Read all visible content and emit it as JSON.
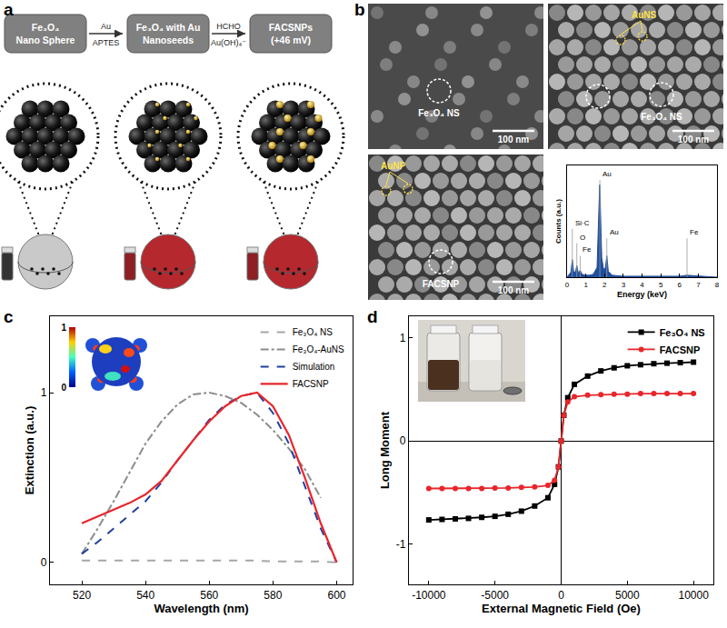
{
  "panel_labels": [
    "a",
    "b",
    "c",
    "d"
  ],
  "schematic": {
    "steps": [
      {
        "lines": [
          "Fe₃O₄",
          "Nano Sphere"
        ]
      },
      {
        "lines": [
          "Fe₃O₄ with Au",
          "Nanoseeds"
        ]
      },
      {
        "lines": [
          "FACSNPs",
          "(+46 mV)"
        ]
      }
    ],
    "arrows": [
      {
        "above": "Au",
        "below": "APTES"
      },
      {
        "above": "HCHO",
        "below": "Au(OH)₄⁻"
      }
    ]
  },
  "sem": {
    "images": [
      {
        "particle_labels": [
          "Fe₃O₄ NS"
        ],
        "gold_labels": [],
        "scale_bar": "100 nm"
      },
      {
        "particle_labels": [
          "Fe₃O₄ NS"
        ],
        "gold_labels": [
          "AuNS"
        ],
        "scale_bar": "100 nm"
      },
      {
        "particle_labels": [
          "FACSNP"
        ],
        "gold_labels": [
          "AuNP"
        ],
        "scale_bar": "100 nm"
      }
    ]
  },
  "chart_data": [
    {
      "type": "area",
      "x_label": "Energy (keV)",
      "y_label": "Counts (a.u.)",
      "x": [
        0,
        0.2,
        0.28,
        0.35,
        0.45,
        0.52,
        0.6,
        0.7,
        0.8,
        1.0,
        1.2,
        1.4,
        1.6,
        1.7,
        1.74,
        1.78,
        1.85,
        1.95,
        2.05,
        2.12,
        2.2,
        2.4,
        3,
        4,
        5,
        6,
        6.4,
        7,
        8
      ],
      "values": [
        0,
        0.05,
        0.18,
        0.06,
        0.05,
        0.12,
        0.04,
        0.07,
        0.03,
        0.02,
        0.02,
        0.03,
        0.1,
        0.6,
        0.95,
        0.7,
        0.2,
        0.08,
        0.1,
        0.22,
        0.06,
        0.02,
        0.01,
        0.01,
        0.01,
        0.01,
        0.02,
        0.01,
        0
      ],
      "color": "#1f4e9c",
      "xlim": [
        0,
        8
      ],
      "xticks": [
        0,
        1,
        2,
        3,
        4,
        5,
        6,
        7,
        8
      ],
      "ylim": [
        0,
        1.15
      ],
      "yticks": [],
      "tick_labels": "x",
      "grid": false,
      "peaks": [
        {
          "label": "Si·C",
          "x": 0.28,
          "y": 0.5
        },
        {
          "label": "O",
          "x": 0.52,
          "y": 0.35
        },
        {
          "label": "Fe",
          "x": 0.7,
          "y": 0.22
        },
        {
          "label": "Au",
          "x": 1.75,
          "y": 1.0
        },
        {
          "label": "Au",
          "x": 2.12,
          "y": 0.4
        },
        {
          "label": "Fe",
          "x": 6.4,
          "y": 0.4
        }
      ]
    },
    {
      "type": "line",
      "x_label": "Wavelength (nm)",
      "y_label": "Extinction (a.u.)",
      "x": [
        520,
        525,
        530,
        535,
        540,
        545,
        550,
        555,
        560,
        565,
        570,
        575,
        580,
        585,
        590,
        595,
        600
      ],
      "series": [
        {
          "name": "Fe₃O₄ NS",
          "color": "#a6a6a6",
          "line_style": "dash",
          "values": [
            0.01,
            0.01,
            0.01,
            0.01,
            0.01,
            0.01,
            0.01,
            0.01,
            0.01,
            0.01,
            0.01,
            0.01,
            0.005,
            0.005,
            0.005,
            0.005,
            0.0
          ]
        },
        {
          "name": "Fe₃O₄-AuNS",
          "color": "#8c8c8c",
          "line_style": "dashdot",
          "values": [
            0.05,
            0.2,
            0.36,
            0.53,
            0.7,
            0.83,
            0.93,
            0.99,
            1.0,
            0.98,
            0.94,
            0.87,
            0.78,
            0.67,
            0.55,
            0.38,
            null
          ]
        },
        {
          "name": "Simulation",
          "color": "#1f3fa0",
          "line_style": "dash",
          "values": [
            0.05,
            0.12,
            0.2,
            0.28,
            0.36,
            0.47,
            0.6,
            0.72,
            0.84,
            0.93,
            0.98,
            1.0,
            0.88,
            0.7,
            0.45,
            0.2,
            0.0
          ]
        },
        {
          "name": "FACSNP",
          "color": "#e8262b",
          "line_style": "solid",
          "values": [
            0.23,
            0.27,
            0.31,
            0.35,
            0.4,
            0.48,
            0.6,
            0.72,
            0.83,
            0.92,
            0.98,
            1.0,
            0.92,
            0.75,
            0.5,
            0.23,
            0.0
          ]
        }
      ],
      "xlim": [
        510,
        605
      ],
      "xticks": [
        520,
        540,
        560,
        580,
        600
      ],
      "ylim": [
        -0.13,
        1.45
      ],
      "yticks": [
        0,
        1
      ],
      "grid": false,
      "legend": "top right",
      "colorbar_range": [
        0,
        1
      ],
      "colorbar_ticks": [
        0,
        1
      ]
    },
    {
      "type": "line",
      "x_label": "External Magnetic Field (Oe)",
      "y_label": "Long Moment",
      "x": [
        -10000,
        -9000,
        -8000,
        -7000,
        -6000,
        -5000,
        -4000,
        -3000,
        -2000,
        -1000,
        -500,
        -200,
        0,
        200,
        500,
        1000,
        2000,
        3000,
        4000,
        5000,
        6000,
        7000,
        8000,
        9000,
        10000
      ],
      "series": [
        {
          "name": "Fe₃O₄ NS",
          "color": "#000000",
          "marker": "square",
          "line_style": "solid",
          "values": [
            -0.765,
            -0.76,
            -0.755,
            -0.75,
            -0.74,
            -0.73,
            -0.71,
            -0.68,
            -0.63,
            -0.55,
            -0.42,
            -0.25,
            0,
            0.25,
            0.42,
            0.55,
            0.63,
            0.68,
            0.71,
            0.73,
            0.74,
            0.75,
            0.755,
            0.76,
            0.765
          ]
        },
        {
          "name": "FACSNP",
          "color": "#e8262b",
          "marker": "circle",
          "line_style": "solid",
          "values": [
            -0.46,
            -0.46,
            -0.46,
            -0.46,
            -0.46,
            -0.455,
            -0.455,
            -0.45,
            -0.445,
            -0.43,
            -0.38,
            -0.25,
            0,
            0.25,
            0.38,
            0.43,
            0.445,
            0.45,
            0.455,
            0.455,
            0.46,
            0.46,
            0.46,
            0.46,
            0.46
          ]
        }
      ],
      "xlim": [
        -11500,
        11500
      ],
      "xticks": [
        -10000,
        -5000,
        0,
        5000,
        10000
      ],
      "ylim": [
        -1.39,
        1.21
      ],
      "yticks": [
        -1,
        0,
        1
      ],
      "grid": false,
      "legend": "top right"
    }
  ]
}
